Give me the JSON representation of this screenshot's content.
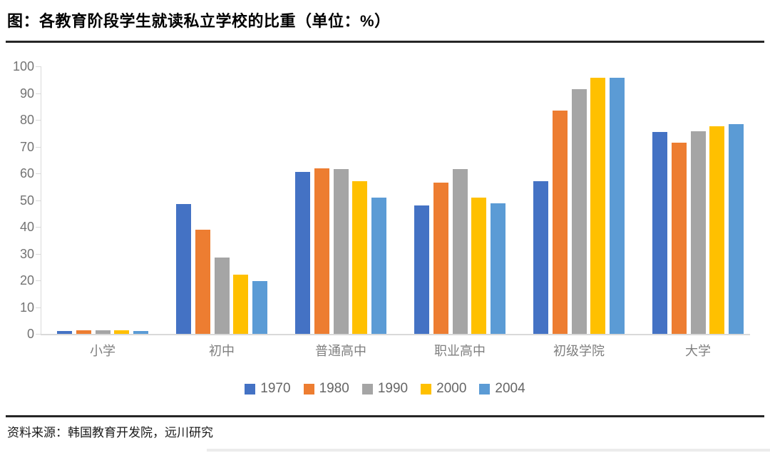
{
  "header": {
    "title": "图：各教育阶段学生就读私立学校的比重（单位：%）"
  },
  "footer": {
    "source": "资料来源：韩国教育开发院，远川研究"
  },
  "chart_data": {
    "type": "bar",
    "title": "各教育阶段学生就读私立学校的比重",
    "unit": "%",
    "categories": [
      "小学",
      "初中",
      "普通高中",
      "职业高中",
      "初级学院",
      "大学"
    ],
    "series": [
      {
        "name": "1970",
        "color": "#4472C4",
        "values": [
          1.0,
          48.5,
          60.4,
          48.0,
          57.0,
          75.4
        ]
      },
      {
        "name": "1980",
        "color": "#ED7D31",
        "values": [
          1.3,
          38.8,
          61.8,
          56.5,
          83.5,
          71.5
        ]
      },
      {
        "name": "1990",
        "color": "#A5A5A5",
        "values": [
          1.4,
          28.5,
          61.5,
          61.5,
          91.5,
          75.6
        ]
      },
      {
        "name": "2000",
        "color": "#FFC000",
        "values": [
          1.2,
          22.0,
          57.1,
          50.8,
          95.7,
          77.6
        ]
      },
      {
        "name": "2004",
        "color": "#5B9BD5",
        "values": [
          1.1,
          19.8,
          51.0,
          48.9,
          95.8,
          78.3
        ]
      }
    ],
    "xlabel": "",
    "ylabel": "",
    "ylim": [
      0,
      100
    ],
    "yticks": [
      0,
      10,
      20,
      30,
      40,
      50,
      60,
      70,
      80,
      90,
      100
    ],
    "grid": false,
    "legend_position": "bottom",
    "axis_color": "#d9d9d9",
    "tick_label_color": "#737373"
  }
}
